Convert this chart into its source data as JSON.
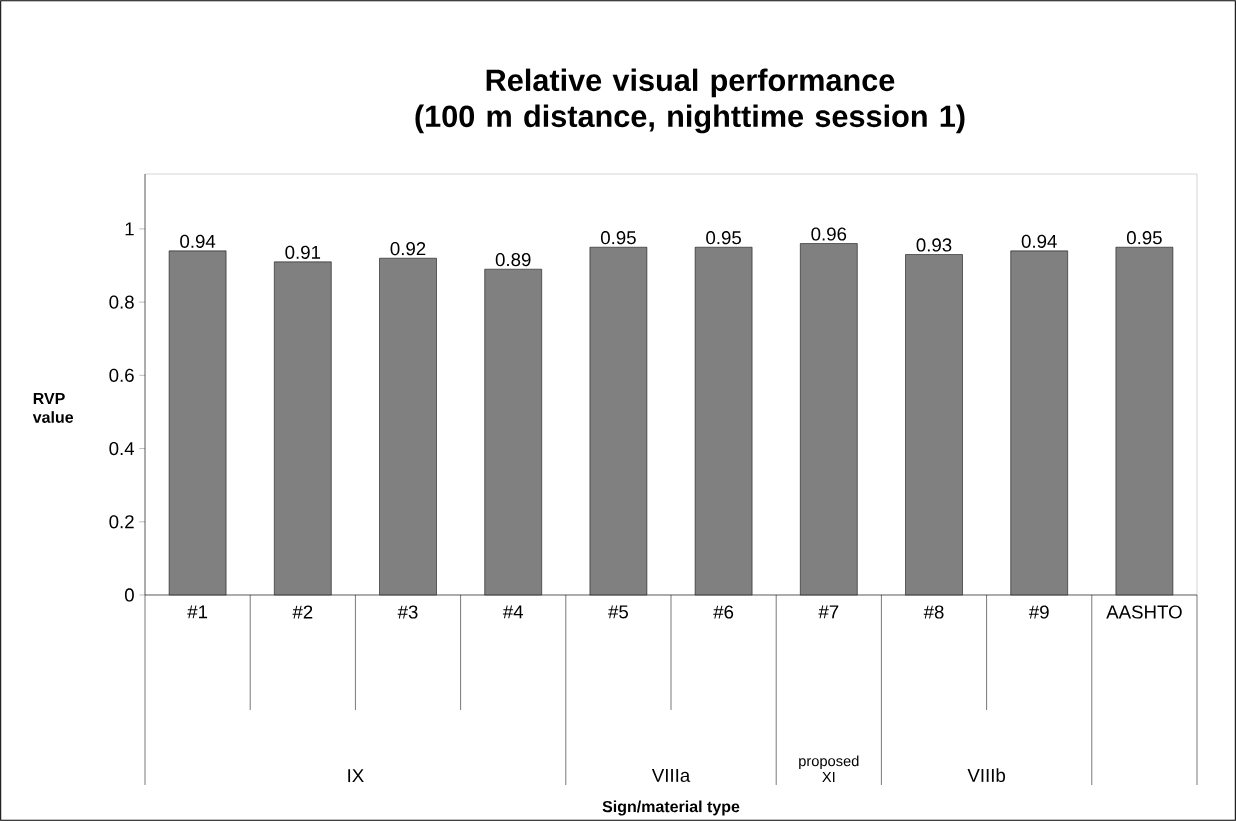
{
  "chart_data": {
    "type": "bar",
    "title": "Relative visual performance\n(100 m distance, nighttime session 1)",
    "ylabel": "RVP value",
    "categories": [
      "#1",
      "#2",
      "#3",
      "#4",
      "#5",
      "#6",
      "#7",
      "#8",
      "#9",
      "AASHTO"
    ],
    "values": [
      0.94,
      0.91,
      0.92,
      0.89,
      0.95,
      0.95,
      0.96,
      0.93,
      0.94,
      0.95
    ],
    "color": "#808080",
    "data_labels": true,
    "ylim": [
      0,
      1.15
    ],
    "yticks": [
      0,
      0.2,
      0.4,
      0.6,
      0.8,
      1
    ],
    "annotations": [
      "IX",
      "VIIIa",
      "proposed XI",
      "VIIIb",
      "Sign/material type"
    ],
    "grid": false
  }
}
